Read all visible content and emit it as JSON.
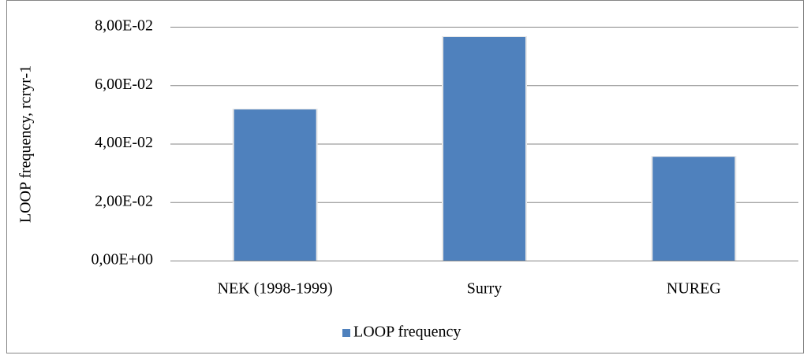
{
  "chart_data": {
    "type": "bar",
    "y_label": "LOOP frequency, rcryr-1",
    "categories": [
      "NEK (1998-1999)",
      "Surry",
      "NUREG"
    ],
    "series": [
      {
        "name": "LOOP frequency",
        "color": "#4f81bd",
        "values": [
          0.0517,
          0.0765,
          0.0355
        ]
      }
    ],
    "ylim": [
      0,
      0.08
    ],
    "yticks": [
      {
        "value": 0,
        "label": "0,00E+00"
      },
      {
        "value": 0.02,
        "label": "2,00E-02"
      },
      {
        "value": 0.04,
        "label": "4,00E-02"
      },
      {
        "value": 0.06,
        "label": "6,00E-02"
      },
      {
        "value": 0.08,
        "label": "8,00E-02"
      }
    ],
    "grid": true,
    "legend": "bottom"
  }
}
